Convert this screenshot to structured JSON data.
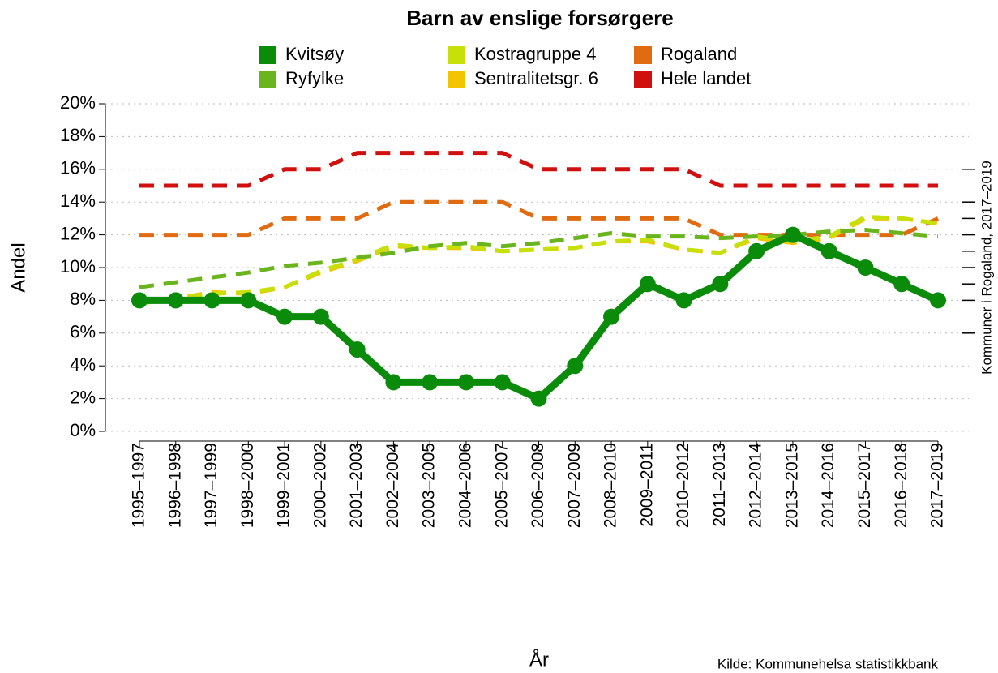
{
  "chart_data": {
    "type": "line",
    "title": "Barn av enslige forsørgere",
    "ylabel": "Andel",
    "xlabel": "År",
    "source": "Kilde: Kommunehelsa statistikkbank",
    "right_label": "Kommuner i Rogaland, 2017–2019",
    "categories": [
      "1995–1997",
      "1996–1998",
      "1997–1999",
      "1998–2000",
      "1999–2001",
      "2000–2002",
      "2001–2003",
      "2002–2004",
      "2003–2005",
      "2004–2006",
      "2005–2007",
      "2006–2008",
      "2007–2009",
      "2008–2010",
      "2009–2011",
      "2010–2012",
      "2011–2013",
      "2012–2014",
      "2013–2015",
      "2014–2016",
      "2015–2017",
      "2016–2018",
      "2017–2019"
    ],
    "series": [
      {
        "name": "Kvitsøy",
        "color": "#0a8c0a",
        "line_style": "solid",
        "markers": true,
        "values": [
          8,
          8,
          8,
          8,
          7,
          7,
          5,
          3,
          3,
          3,
          3,
          2,
          4,
          7,
          9,
          8,
          9,
          11,
          12,
          11,
          10,
          9,
          8
        ]
      },
      {
        "name": "Ryfylke",
        "color": "#6ab51d",
        "line_style": "dashed",
        "markers": false,
        "values": [
          8.8,
          9.1,
          9.4,
          9.7,
          10.1,
          10.3,
          10.6,
          10.9,
          11.3,
          11.5,
          11.3,
          11.5,
          11.8,
          12.1,
          11.9,
          11.9,
          11.8,
          11.9,
          12.0,
          12.2,
          12.3,
          12.1,
          11.9
        ]
      },
      {
        "name": "Kostragruppe 4",
        "color": "#c8e00a",
        "line_style": "dashed",
        "markers": false,
        "values": [
          7.8,
          8.1,
          8.4,
          8.5,
          8.8,
          9.8,
          10.5,
          11.4,
          11.2,
          11.3,
          11.0,
          11.1,
          11.2,
          11.6,
          11.7,
          11.1,
          10.9,
          11.9,
          11.6,
          11.9,
          13.1,
          13.0,
          12.7
        ]
      },
      {
        "name": "Sentralitetsgr. 6",
        "color": "#f2c500",
        "line_style": "dashed",
        "markers": false,
        "values": [
          7.9,
          8.1,
          8.5,
          8.4,
          8.8,
          9.7,
          10.4,
          11.3,
          11.2,
          11.2,
          11.0,
          11.1,
          11.2,
          11.6,
          11.6,
          11.1,
          10.9,
          11.8,
          11.5,
          11.8,
          13.0,
          13.0,
          12.7
        ]
      },
      {
        "name": "Rogaland",
        "color": "#e06b10",
        "line_style": "dashed",
        "markers": false,
        "values": [
          12,
          12,
          12,
          12,
          13,
          13,
          13,
          14,
          14,
          14,
          14,
          13,
          13,
          13,
          13,
          13,
          12,
          12,
          12,
          12,
          12,
          12,
          13
        ]
      },
      {
        "name": "Hele landet",
        "color": "#d0100f",
        "line_style": "dashed",
        "markers": false,
        "values": [
          15,
          15,
          15,
          15,
          16,
          16,
          17,
          17,
          17,
          17,
          17,
          16,
          16,
          16,
          16,
          16,
          15,
          15,
          15,
          15,
          15,
          15,
          15
        ]
      }
    ],
    "rug_values": [
      16,
      14,
      13,
      12,
      11,
      10,
      9,
      8,
      6
    ],
    "ylim": [
      0,
      20
    ],
    "yticks": [
      {
        "value": 0,
        "label": "0%"
      },
      {
        "value": 2,
        "label": "2%"
      },
      {
        "value": 4,
        "label": "4%"
      },
      {
        "value": 6,
        "label": "6%"
      },
      {
        "value": 8,
        "label": "8%"
      },
      {
        "value": 10,
        "label": "10%"
      },
      {
        "value": 12,
        "label": "12%"
      },
      {
        "value": 14,
        "label": "14%"
      },
      {
        "value": 16,
        "label": "16%"
      },
      {
        "value": 18,
        "label": "18%"
      },
      {
        "value": 20,
        "label": "20%"
      }
    ],
    "grid": true
  }
}
